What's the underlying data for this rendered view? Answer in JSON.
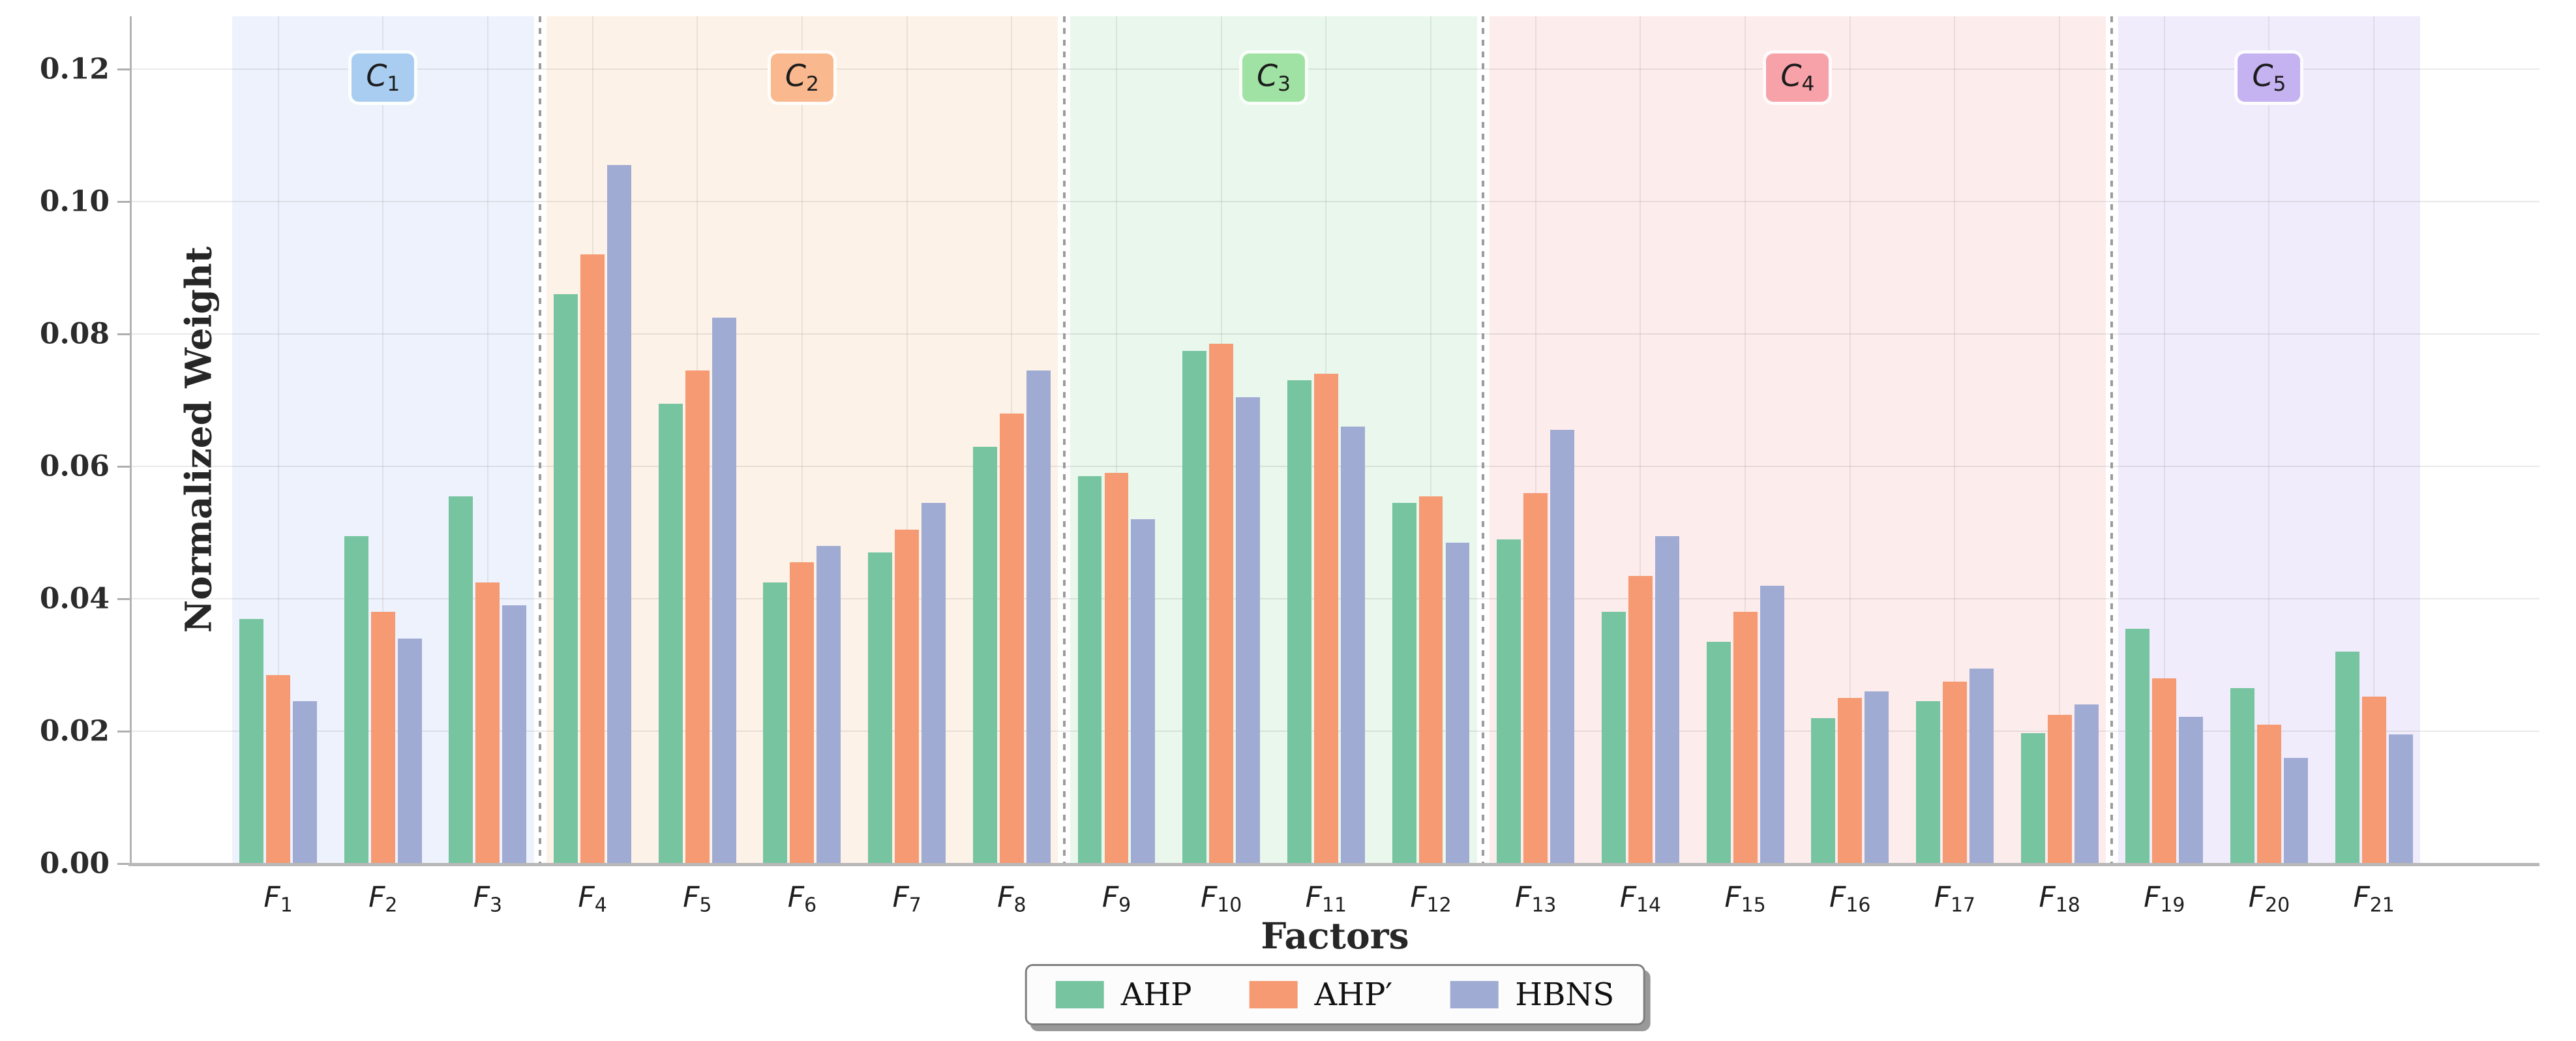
{
  "chart_data": {
    "type": "bar",
    "title": "",
    "xlabel": "Factors",
    "ylabel": "Normalized Weight",
    "ylim": [
      0,
      0.128
    ],
    "x_range": [
      -1.41,
      21.58
    ],
    "grid": "both",
    "legend_position": "bottom-center",
    "yticks": [
      0.0,
      0.02,
      0.04,
      0.06,
      0.08,
      0.1,
      0.12
    ],
    "ytick_labels": [
      "0.00",
      "0.02",
      "0.04",
      "0.06",
      "0.08",
      "0.10",
      "0.12"
    ],
    "categories": [
      "F1",
      "F2",
      "F3",
      "F4",
      "F5",
      "F6",
      "F7",
      "F8",
      "F9",
      "F10",
      "F11",
      "F12",
      "F13",
      "F14",
      "F15",
      "F16",
      "F17",
      "F18",
      "F19",
      "F20",
      "F21"
    ],
    "series": [
      {
        "name": "AHP",
        "color": "#76c4a0",
        "values": [
          0.037,
          0.0495,
          0.0555,
          0.086,
          0.0695,
          0.0425,
          0.047,
          0.063,
          0.0585,
          0.0775,
          0.073,
          0.0545,
          0.049,
          0.038,
          0.0335,
          0.022,
          0.0245,
          0.0197,
          0.0355,
          0.0265,
          0.032
        ]
      },
      {
        "name": "AHP′",
        "color": "#f59a73",
        "values": [
          0.0285,
          0.038,
          0.0425,
          0.092,
          0.0745,
          0.0455,
          0.0505,
          0.068,
          0.059,
          0.0785,
          0.074,
          0.0555,
          0.056,
          0.0435,
          0.038,
          0.025,
          0.0275,
          0.0225,
          0.028,
          0.021,
          0.0252
        ]
      },
      {
        "name": "HBNS",
        "color": "#a0abd4",
        "values": [
          0.0245,
          0.034,
          0.039,
          0.1055,
          0.0825,
          0.048,
          0.0545,
          0.0745,
          0.052,
          0.0705,
          0.066,
          0.0485,
          0.0655,
          0.0495,
          0.042,
          0.026,
          0.0295,
          0.024,
          0.0222,
          0.016,
          0.0195
        ]
      }
    ],
    "bar_offsets": [
      -0.255,
      0,
      0.255
    ],
    "bar_width": 0.23,
    "groups": [
      {
        "label": "C1",
        "first": 0,
        "last": 2,
        "band_color": "#edf2fc",
        "chip_color": "#a9cdf0"
      },
      {
        "label": "C2",
        "first": 3,
        "last": 7,
        "band_color": "#fdf2e7",
        "chip_color": "#f9b88e"
      },
      {
        "label": "C3",
        "first": 8,
        "last": 11,
        "band_color": "#e9f7ec",
        "chip_color": "#9fe2a4"
      },
      {
        "label": "C4",
        "first": 12,
        "last": 17,
        "band_color": "#fdecec",
        "chip_color": "#f7a2a9"
      },
      {
        "label": "C5",
        "first": 18,
        "last": 20,
        "band_color": "#f0ecfb",
        "chip_color": "#c4b3f0"
      }
    ],
    "separators": [
      2.5,
      7.5,
      11.5,
      17.5
    ],
    "band_pad": 0.44
  },
  "legend": {
    "items": [
      {
        "label": "AHP",
        "color": "#76c4a0"
      },
      {
        "label": "AHP′",
        "color": "#f59a73"
      },
      {
        "label": "HBNS",
        "color": "#a0abd4"
      }
    ]
  }
}
